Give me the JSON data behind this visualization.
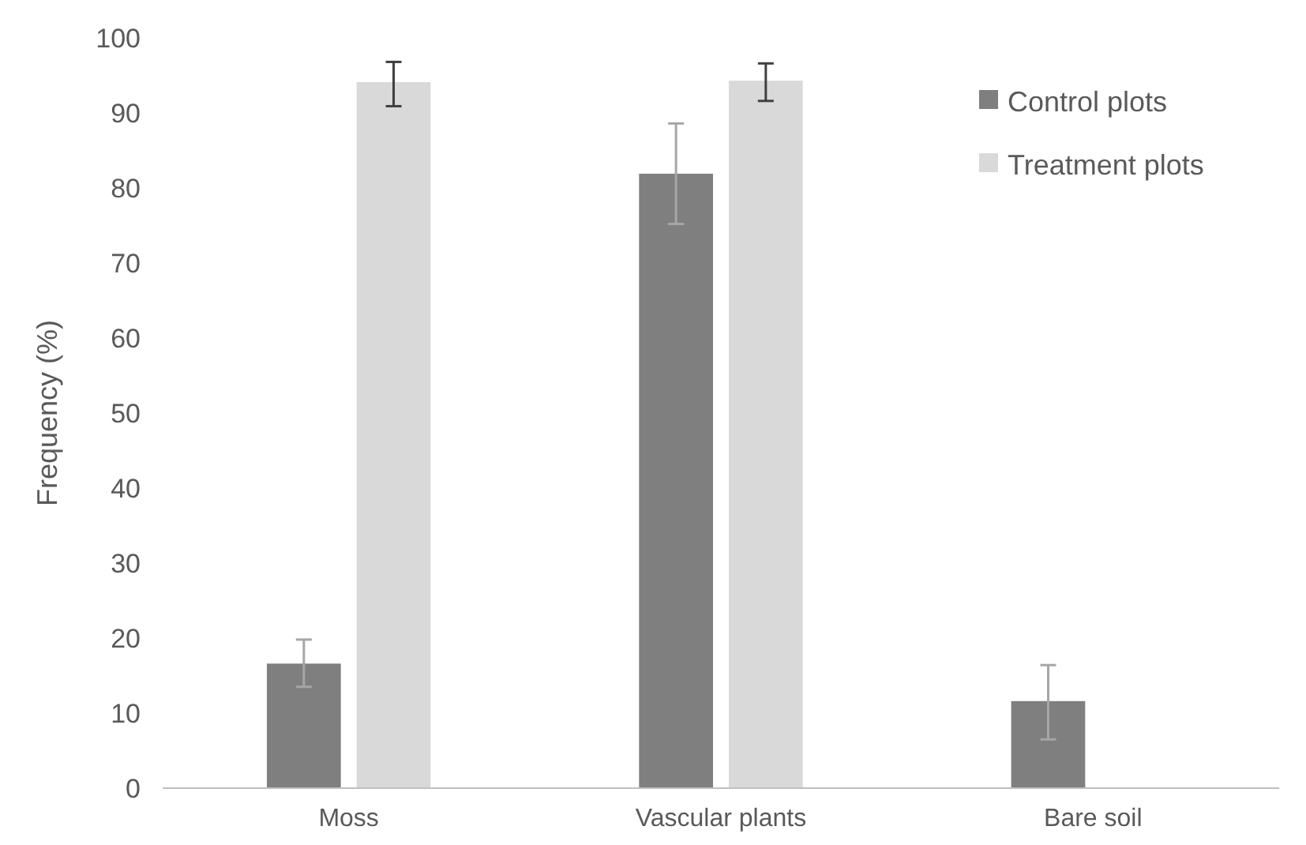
{
  "chart_data": {
    "type": "bar",
    "ylabel": "Frequency (%)",
    "categories": [
      "Moss",
      "Vascular plants",
      "Bare soil"
    ],
    "series": [
      {
        "name": "Control plots",
        "color": "#7f7f7f",
        "values": [
          16.6,
          81.9,
          11.6
        ],
        "errors": [
          [
            13.5,
            19.8
          ],
          [
            75.2,
            88.6
          ],
          [
            6.5,
            16.4
          ]
        ]
      },
      {
        "name": "Treatment plots",
        "color": "#d9d9d9",
        "values": [
          94.1,
          94.3,
          0
        ],
        "errors": [
          [
            90.9,
            96.8
          ],
          [
            91.6,
            96.6
          ],
          null
        ]
      }
    ],
    "ylim": [
      0,
      100
    ],
    "yticks": [
      0,
      10,
      20,
      30,
      40,
      50,
      60,
      70,
      80,
      90,
      100
    ],
    "grid": false,
    "legend": "top right"
  }
}
